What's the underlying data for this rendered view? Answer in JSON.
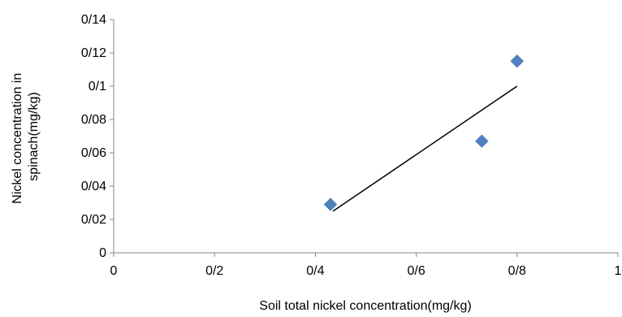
{
  "chart_data": {
    "type": "scatter",
    "title": "",
    "xlabel": "Soil total nickel concentration(mg/kg)",
    "ylabel_lines": [
      "Nickel concentration in",
      "spinach(mg/kg)"
    ],
    "xlim": [
      0,
      1
    ],
    "ylim": [
      0,
      0.14
    ],
    "x_ticks": [
      {
        "value": 0,
        "label": "0"
      },
      {
        "value": 0.2,
        "label": "0/2"
      },
      {
        "value": 0.4,
        "label": "0/4"
      },
      {
        "value": 0.6,
        "label": "0/6"
      },
      {
        "value": 0.8,
        "label": "0/8"
      },
      {
        "value": 1,
        "label": "1"
      }
    ],
    "y_ticks": [
      {
        "value": 0,
        "label": "0"
      },
      {
        "value": 0.02,
        "label": "0/02"
      },
      {
        "value": 0.04,
        "label": "0/04"
      },
      {
        "value": 0.06,
        "label": "0/06"
      },
      {
        "value": 0.08,
        "label": "0/08"
      },
      {
        "value": 0.1,
        "label": "0/1"
      },
      {
        "value": 0.12,
        "label": "0/12"
      },
      {
        "value": 0.14,
        "label": "0/14"
      }
    ],
    "series": [
      {
        "points": [
          {
            "x": 0.43,
            "y": 0.029
          },
          {
            "x": 0.73,
            "y": 0.067
          },
          {
            "x": 0.8,
            "y": 0.115
          }
        ],
        "color": "#4F81BD",
        "marker": "diamond"
      }
    ],
    "trendline": {
      "type": "linear",
      "from": {
        "x": 0.435,
        "y": 0.025
      },
      "to": {
        "x": 0.8,
        "y": 0.1
      },
      "color": "#000000"
    },
    "grid": false,
    "legend": "none"
  }
}
